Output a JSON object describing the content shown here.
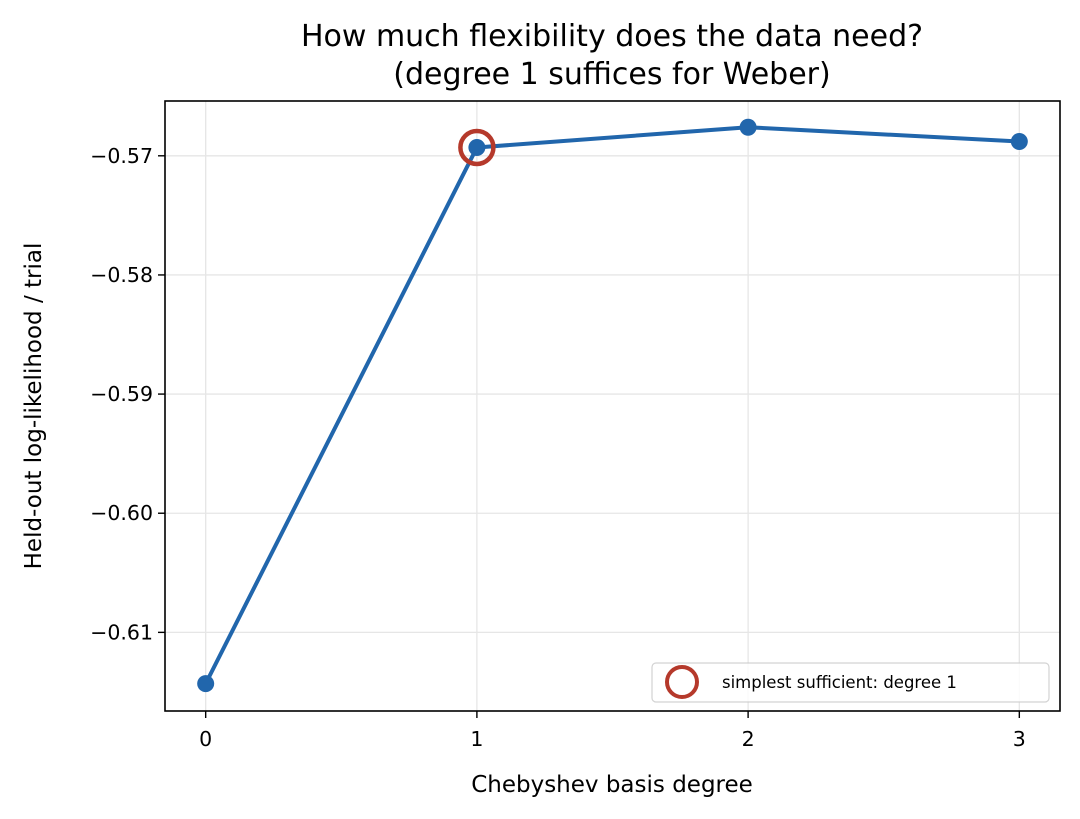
{
  "chart_data": {
    "type": "line",
    "title_line1": "How much flexibility does the data need?",
    "title_line2": "(degree 1 suffices for Weber)",
    "xlabel": "Chebyshev basis degree",
    "ylabel": "Held-out log-likelihood / trial",
    "x": [
      0,
      1,
      2,
      3
    ],
    "x_tick_labels": [
      "0",
      "1",
      "2",
      "3"
    ],
    "series": [
      {
        "values": [
          -0.6143,
          -0.5693,
          -0.5676,
          -0.5688
        ],
        "color": "#2166ac"
      }
    ],
    "highlight": {
      "x": 1,
      "y": -0.5693,
      "color": "#b5392b",
      "legend_label": "simplest sufficient: degree 1"
    },
    "xlim": [
      -0.15,
      3.15
    ],
    "ylim": [
      -0.6166,
      -0.5654
    ],
    "y_ticks": [
      -0.57,
      -0.58,
      -0.59,
      -0.6,
      -0.61
    ],
    "y_tick_labels": [
      "−0.57",
      "−0.58",
      "−0.59",
      "−0.60",
      "−0.61"
    ],
    "grid": true,
    "legend_position": "lower-right"
  }
}
